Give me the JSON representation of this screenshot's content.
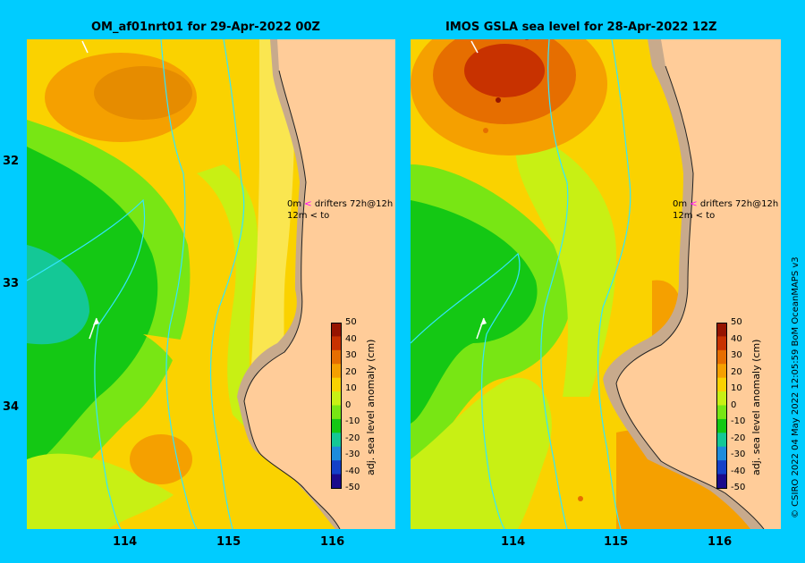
{
  "panels": [
    {
      "title": "OM_af01nrt01 for 29-Apr-2022 00Z",
      "legend": {
        "row1_depth": "0m",
        "row1_arrow": "<",
        "row1_text": "drifters 72h@12h",
        "row2_depth": "12m",
        "row2_arrow": "<",
        "row2_text": "to"
      }
    },
    {
      "title": "IMOS GSLA sea level  for 28-Apr-2022 12Z",
      "legend": {
        "row1_depth": "0m",
        "row1_arrow": "<",
        "row1_text": "drifters 72h@12h",
        "row2_depth": "12m",
        "row2_arrow": "<",
        "row2_text": "to"
      }
    }
  ],
  "y_ticks": [
    "32",
    "33",
    "34"
  ],
  "x_ticks": [
    "114",
    "115",
    "116"
  ],
  "colorbar": {
    "label": "adj. sea level anomaly (cm)",
    "ticks": [
      "50",
      "40",
      "30",
      "20",
      "10",
      "0",
      "-10",
      "-20",
      "-30",
      "-40",
      "-50"
    ]
  },
  "credit": "© CSIRO 2022   04 May 2022 12:05:59 BoM OceanMAPS v3",
  "colors": {
    "frame": "#00ccff",
    "land": "#ffcc99",
    "coast_shelf": "#c8aa8c",
    "bathymetry_contour": "#33e6ff",
    "drifter_legend": "#ff00ff"
  },
  "color_scale": [
    "#1a0a8c",
    "#1440c8",
    "#1e8cdc",
    "#14c896",
    "#14c814",
    "#78e614",
    "#c8f014",
    "#fad200",
    "#f5a000",
    "#e66e00",
    "#c83200",
    "#961400"
  ]
}
